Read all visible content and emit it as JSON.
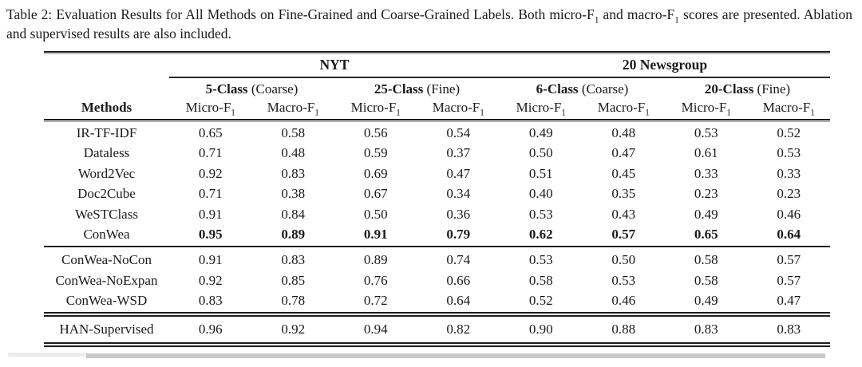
{
  "caption": {
    "part1": "Table 2: Evaluation Results for All Methods on Fine-Grained and Coarse-Grained Labels. Both micro-F",
    "sub1": "1",
    "part2": " and macro-F",
    "sub2": "1",
    "part3": " scores are presented. Ablation and supervised results are also included."
  },
  "table": {
    "groups": [
      "NYT",
      "20 Newsgroup"
    ],
    "subgroups": [
      {
        "bold": "5-Class",
        "rest": " (Coarse)"
      },
      {
        "bold": "25-Class",
        "rest": " (Fine)"
      },
      {
        "bold": "6-Class",
        "rest": " (Coarse)"
      },
      {
        "bold": "20-Class",
        "rest": " (Fine)"
      }
    ],
    "methods_header": "Methods",
    "metrics": {
      "micro": {
        "base": "Micro-F",
        "sub": "1"
      },
      "macro": {
        "base": "Macro-F",
        "sub": "1"
      }
    },
    "sections": [
      {
        "rows": [
          {
            "method": "IR-TF-IDF",
            "values": [
              "0.65",
              "0.58",
              "0.56",
              "0.54",
              "0.49",
              "0.48",
              "0.53",
              "0.52"
            ]
          },
          {
            "method": "Dataless",
            "values": [
              "0.71",
              "0.48",
              "0.59",
              "0.37",
              "0.50",
              "0.47",
              "0.61",
              "0.53"
            ]
          },
          {
            "method": "Word2Vec",
            "values": [
              "0.92",
              "0.83",
              "0.69",
              "0.47",
              "0.51",
              "0.45",
              "0.33",
              "0.33"
            ]
          },
          {
            "method": "Doc2Cube",
            "values": [
              "0.71",
              "0.38",
              "0.67",
              "0.34",
              "0.40",
              "0.35",
              "0.23",
              "0.23"
            ]
          },
          {
            "method": "WeSTClass",
            "values": [
              "0.91",
              "0.84",
              "0.50",
              "0.36",
              "0.53",
              "0.43",
              "0.49",
              "0.46"
            ]
          },
          {
            "method": "ConWea",
            "values": [
              "0.95",
              "0.89",
              "0.91",
              "0.79",
              "0.62",
              "0.57",
              "0.65",
              "0.64"
            ]
          }
        ]
      },
      {
        "rows": [
          {
            "method": "ConWea-NoCon",
            "values": [
              "0.91",
              "0.83",
              "0.89",
              "0.74",
              "0.53",
              "0.50",
              "0.58",
              "0.57"
            ]
          },
          {
            "method": "ConWea-NoExpan",
            "values": [
              "0.92",
              "0.85",
              "0.76",
              "0.66",
              "0.58",
              "0.53",
              "0.58",
              "0.57"
            ]
          },
          {
            "method": "ConWea-WSD",
            "values": [
              "0.83",
              "0.78",
              "0.72",
              "0.64",
              "0.52",
              "0.46",
              "0.49",
              "0.47"
            ]
          }
        ]
      },
      {
        "rows": [
          {
            "method": "HAN-Supervised",
            "values": [
              "0.96",
              "0.92",
              "0.94",
              "0.82",
              "0.90",
              "0.88",
              "0.83",
              "0.83"
            ]
          }
        ]
      }
    ]
  }
}
